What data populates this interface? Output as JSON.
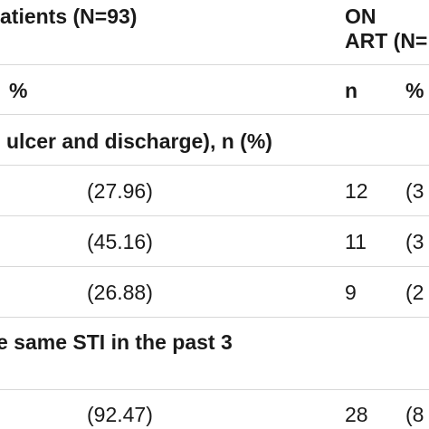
{
  "header": {
    "group_label": "atients (N=93)",
    "on_art_line1": "ON",
    "on_art_line2": "ART (N=",
    "col_pct": "%",
    "col_n": "n",
    "col_pct2": "%"
  },
  "section1": {
    "title": "ulcer and discharge), n (%)",
    "rows": [
      {
        "pct": "(27.96)",
        "n": "12",
        "pct2": "(3"
      },
      {
        "pct": "(45.16)",
        "n": "11",
        "pct2": "(3"
      },
      {
        "pct": "(26.88)",
        "n": "9",
        "pct2": "(2"
      }
    ]
  },
  "section2": {
    "title": "e same STI in the past 3",
    "rows": [
      {
        "pct": "(92.47)",
        "n": "28",
        "pct2": "(8"
      }
    ]
  }
}
